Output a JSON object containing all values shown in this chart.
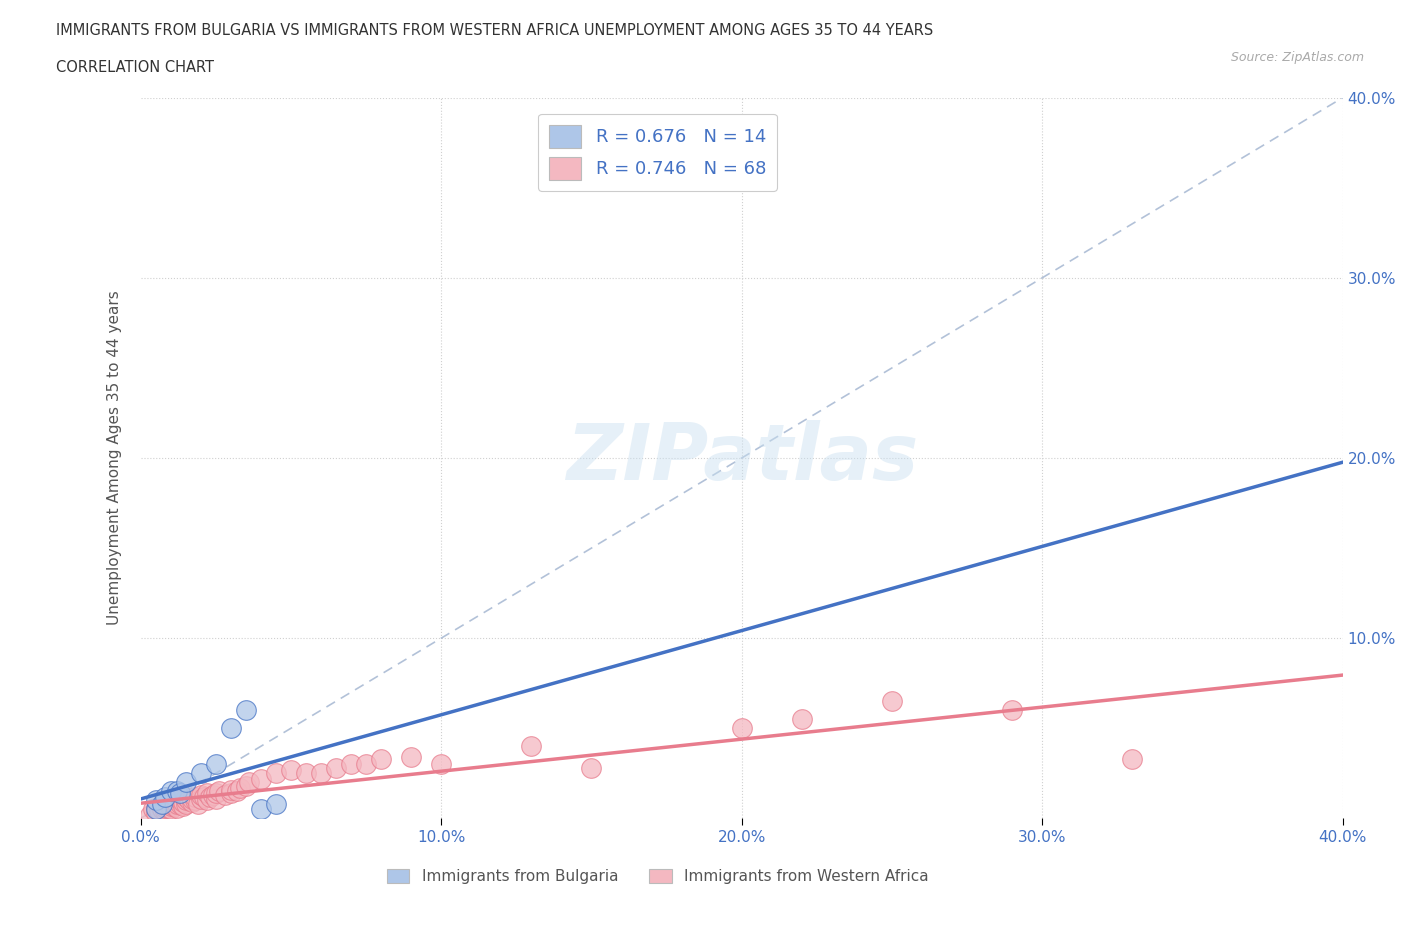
{
  "title_line1": "IMMIGRANTS FROM BULGARIA VS IMMIGRANTS FROM WESTERN AFRICA UNEMPLOYMENT AMONG AGES 35 TO 44 YEARS",
  "title_line2": "CORRELATION CHART",
  "source": "Source: ZipAtlas.com",
  "ylabel": "Unemployment Among Ages 35 to 44 years",
  "xlim": [
    0.0,
    0.4
  ],
  "ylim": [
    0.0,
    0.4
  ],
  "watermark": "ZIPatlas",
  "legend_items": [
    {
      "label": "R = 0.676   N = 14",
      "color": "#aec6e8"
    },
    {
      "label": "R = 0.746   N = 68",
      "color": "#f4b8c1"
    }
  ],
  "legend_bottom_items": [
    {
      "label": "Immigrants from Bulgaria",
      "color": "#aec6e8"
    },
    {
      "label": "Immigrants from Western Africa",
      "color": "#f4b8c1"
    }
  ],
  "bulgaria_scatter": [
    [
      0.005,
      0.005
    ],
    [
      0.005,
      0.01
    ],
    [
      0.007,
      0.008
    ],
    [
      0.008,
      0.012
    ],
    [
      0.01,
      0.015
    ],
    [
      0.012,
      0.015
    ],
    [
      0.013,
      0.014
    ],
    [
      0.015,
      0.02
    ],
    [
      0.02,
      0.025
    ],
    [
      0.025,
      0.03
    ],
    [
      0.03,
      0.05
    ],
    [
      0.035,
      0.06
    ],
    [
      0.04,
      0.005
    ],
    [
      0.045,
      0.008
    ]
  ],
  "western_africa_scatter": [
    [
      0.003,
      0.002
    ],
    [
      0.004,
      0.005
    ],
    [
      0.005,
      0.003
    ],
    [
      0.005,
      0.006
    ],
    [
      0.006,
      0.004
    ],
    [
      0.007,
      0.005
    ],
    [
      0.007,
      0.008
    ],
    [
      0.008,
      0.004
    ],
    [
      0.008,
      0.006
    ],
    [
      0.008,
      0.008
    ],
    [
      0.009,
      0.006
    ],
    [
      0.009,
      0.008
    ],
    [
      0.01,
      0.005
    ],
    [
      0.01,
      0.007
    ],
    [
      0.01,
      0.009
    ],
    [
      0.011,
      0.007
    ],
    [
      0.011,
      0.008
    ],
    [
      0.012,
      0.006
    ],
    [
      0.012,
      0.008
    ],
    [
      0.012,
      0.01
    ],
    [
      0.013,
      0.008
    ],
    [
      0.013,
      0.01
    ],
    [
      0.014,
      0.007
    ],
    [
      0.014,
      0.009
    ],
    [
      0.015,
      0.008
    ],
    [
      0.015,
      0.01
    ],
    [
      0.015,
      0.012
    ],
    [
      0.016,
      0.01
    ],
    [
      0.017,
      0.009
    ],
    [
      0.017,
      0.011
    ],
    [
      0.018,
      0.01
    ],
    [
      0.018,
      0.012
    ],
    [
      0.019,
      0.008
    ],
    [
      0.02,
      0.011
    ],
    [
      0.02,
      0.013
    ],
    [
      0.021,
      0.012
    ],
    [
      0.022,
      0.01
    ],
    [
      0.022,
      0.014
    ],
    [
      0.023,
      0.012
    ],
    [
      0.024,
      0.013
    ],
    [
      0.025,
      0.011
    ],
    [
      0.025,
      0.014
    ],
    [
      0.026,
      0.015
    ],
    [
      0.028,
      0.013
    ],
    [
      0.03,
      0.014
    ],
    [
      0.03,
      0.016
    ],
    [
      0.032,
      0.015
    ],
    [
      0.033,
      0.017
    ],
    [
      0.035,
      0.018
    ],
    [
      0.036,
      0.02
    ],
    [
      0.04,
      0.022
    ],
    [
      0.045,
      0.025
    ],
    [
      0.05,
      0.027
    ],
    [
      0.055,
      0.025
    ],
    [
      0.06,
      0.025
    ],
    [
      0.065,
      0.028
    ],
    [
      0.07,
      0.03
    ],
    [
      0.075,
      0.03
    ],
    [
      0.08,
      0.033
    ],
    [
      0.09,
      0.034
    ],
    [
      0.1,
      0.03
    ],
    [
      0.13,
      0.04
    ],
    [
      0.15,
      0.028
    ],
    [
      0.2,
      0.05
    ],
    [
      0.22,
      0.055
    ],
    [
      0.25,
      0.065
    ],
    [
      0.29,
      0.06
    ],
    [
      0.33,
      0.033
    ]
  ],
  "bulgaria_line_color": "#4472c4",
  "western_africa_line_color": "#e87c8d",
  "reference_line_color": "#aabbd4",
  "scatter_bulgaria_color": "#aec6e8",
  "scatter_western_africa_color": "#f4b8c1",
  "background_color": "#ffffff",
  "grid_color": "#d0d0d0",
  "title_color": "#333333",
  "axis_label_color": "#555555",
  "tick_color": "#4472c4"
}
